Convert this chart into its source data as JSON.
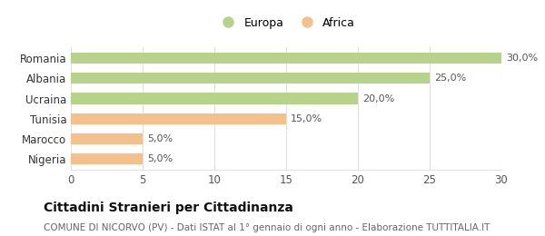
{
  "categories": [
    "Nigeria",
    "Marocco",
    "Tunisia",
    "Ucraina",
    "Albania",
    "Romania"
  ],
  "values": [
    5.0,
    5.0,
    15.0,
    20.0,
    25.0,
    30.0
  ],
  "colors": [
    "#f5c08a",
    "#f5c08a",
    "#f5c08a",
    "#b5d48a",
    "#b5d48a",
    "#b5d48a"
  ],
  "bar_labels": [
    "5,0%",
    "5,0%",
    "15,0%",
    "20,0%",
    "25,0%",
    "30,0%"
  ],
  "xlim": [
    0,
    30
  ],
  "xticks": [
    0,
    5,
    10,
    15,
    20,
    25,
    30
  ],
  "legend": [
    {
      "label": "Europa",
      "color": "#b5d48a"
    },
    {
      "label": "Africa",
      "color": "#f5c08a"
    }
  ],
  "title": "Cittadini Stranieri per Cittadinanza",
  "subtitle": "COMUNE DI NICORVO (PV) - Dati ISTAT al 1° gennaio di ogni anno - Elaborazione TUTTITALIA.IT",
  "bg_color": "#ffffff",
  "grid_color": "#e0e0e0",
  "bar_height": 0.55,
  "title_fontsize": 10,
  "subtitle_fontsize": 7.5,
  "label_fontsize": 8,
  "ytick_fontsize": 8.5,
  "xtick_fontsize": 8.5,
  "legend_fontsize": 9
}
